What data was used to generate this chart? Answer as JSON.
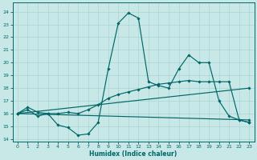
{
  "xlabel": "Humidex (Indice chaleur)",
  "bg_color": "#c8e8e8",
  "line_color": "#006666",
  "grid_color": "#b0d8d8",
  "xlim": [
    -0.5,
    23.5
  ],
  "ylim": [
    13.8,
    24.7
  ],
  "xticks": [
    0,
    1,
    2,
    3,
    4,
    5,
    6,
    7,
    8,
    9,
    10,
    11,
    12,
    13,
    14,
    15,
    16,
    17,
    18,
    19,
    20,
    21,
    22,
    23
  ],
  "yticks": [
    14,
    15,
    16,
    17,
    18,
    19,
    20,
    21,
    22,
    23,
    24
  ],
  "line1_x": [
    0,
    1,
    2,
    3,
    4,
    5,
    6,
    7,
    8,
    9,
    10,
    11,
    12,
    13,
    14,
    15,
    16,
    17,
    18,
    19,
    20,
    21,
    22,
    23
  ],
  "line1_y": [
    16.0,
    16.3,
    15.8,
    16.0,
    15.1,
    14.9,
    14.3,
    14.4,
    15.3,
    19.5,
    23.1,
    23.9,
    23.5,
    18.5,
    18.2,
    18.0,
    19.5,
    20.6,
    20.0,
    20.0,
    17.0,
    15.8,
    15.5,
    15.3
  ],
  "line2_x": [
    0,
    1,
    2,
    3,
    4,
    5,
    6,
    7,
    8,
    9,
    10,
    11,
    12,
    13,
    14,
    15,
    16,
    17,
    18,
    19,
    20,
    21,
    22,
    23
  ],
  "line2_y": [
    16.0,
    16.5,
    16.1,
    16.0,
    16.0,
    16.1,
    16.0,
    16.3,
    16.7,
    17.2,
    17.5,
    17.7,
    17.9,
    18.1,
    18.3,
    18.4,
    18.5,
    18.6,
    18.5,
    18.5,
    18.5,
    18.5,
    15.5,
    15.3
  ],
  "line3_x": [
    0,
    23
  ],
  "line3_y": [
    16.0,
    15.5
  ],
  "line4_x": [
    0,
    23
  ],
  "line4_y": [
    16.0,
    18.0
  ]
}
